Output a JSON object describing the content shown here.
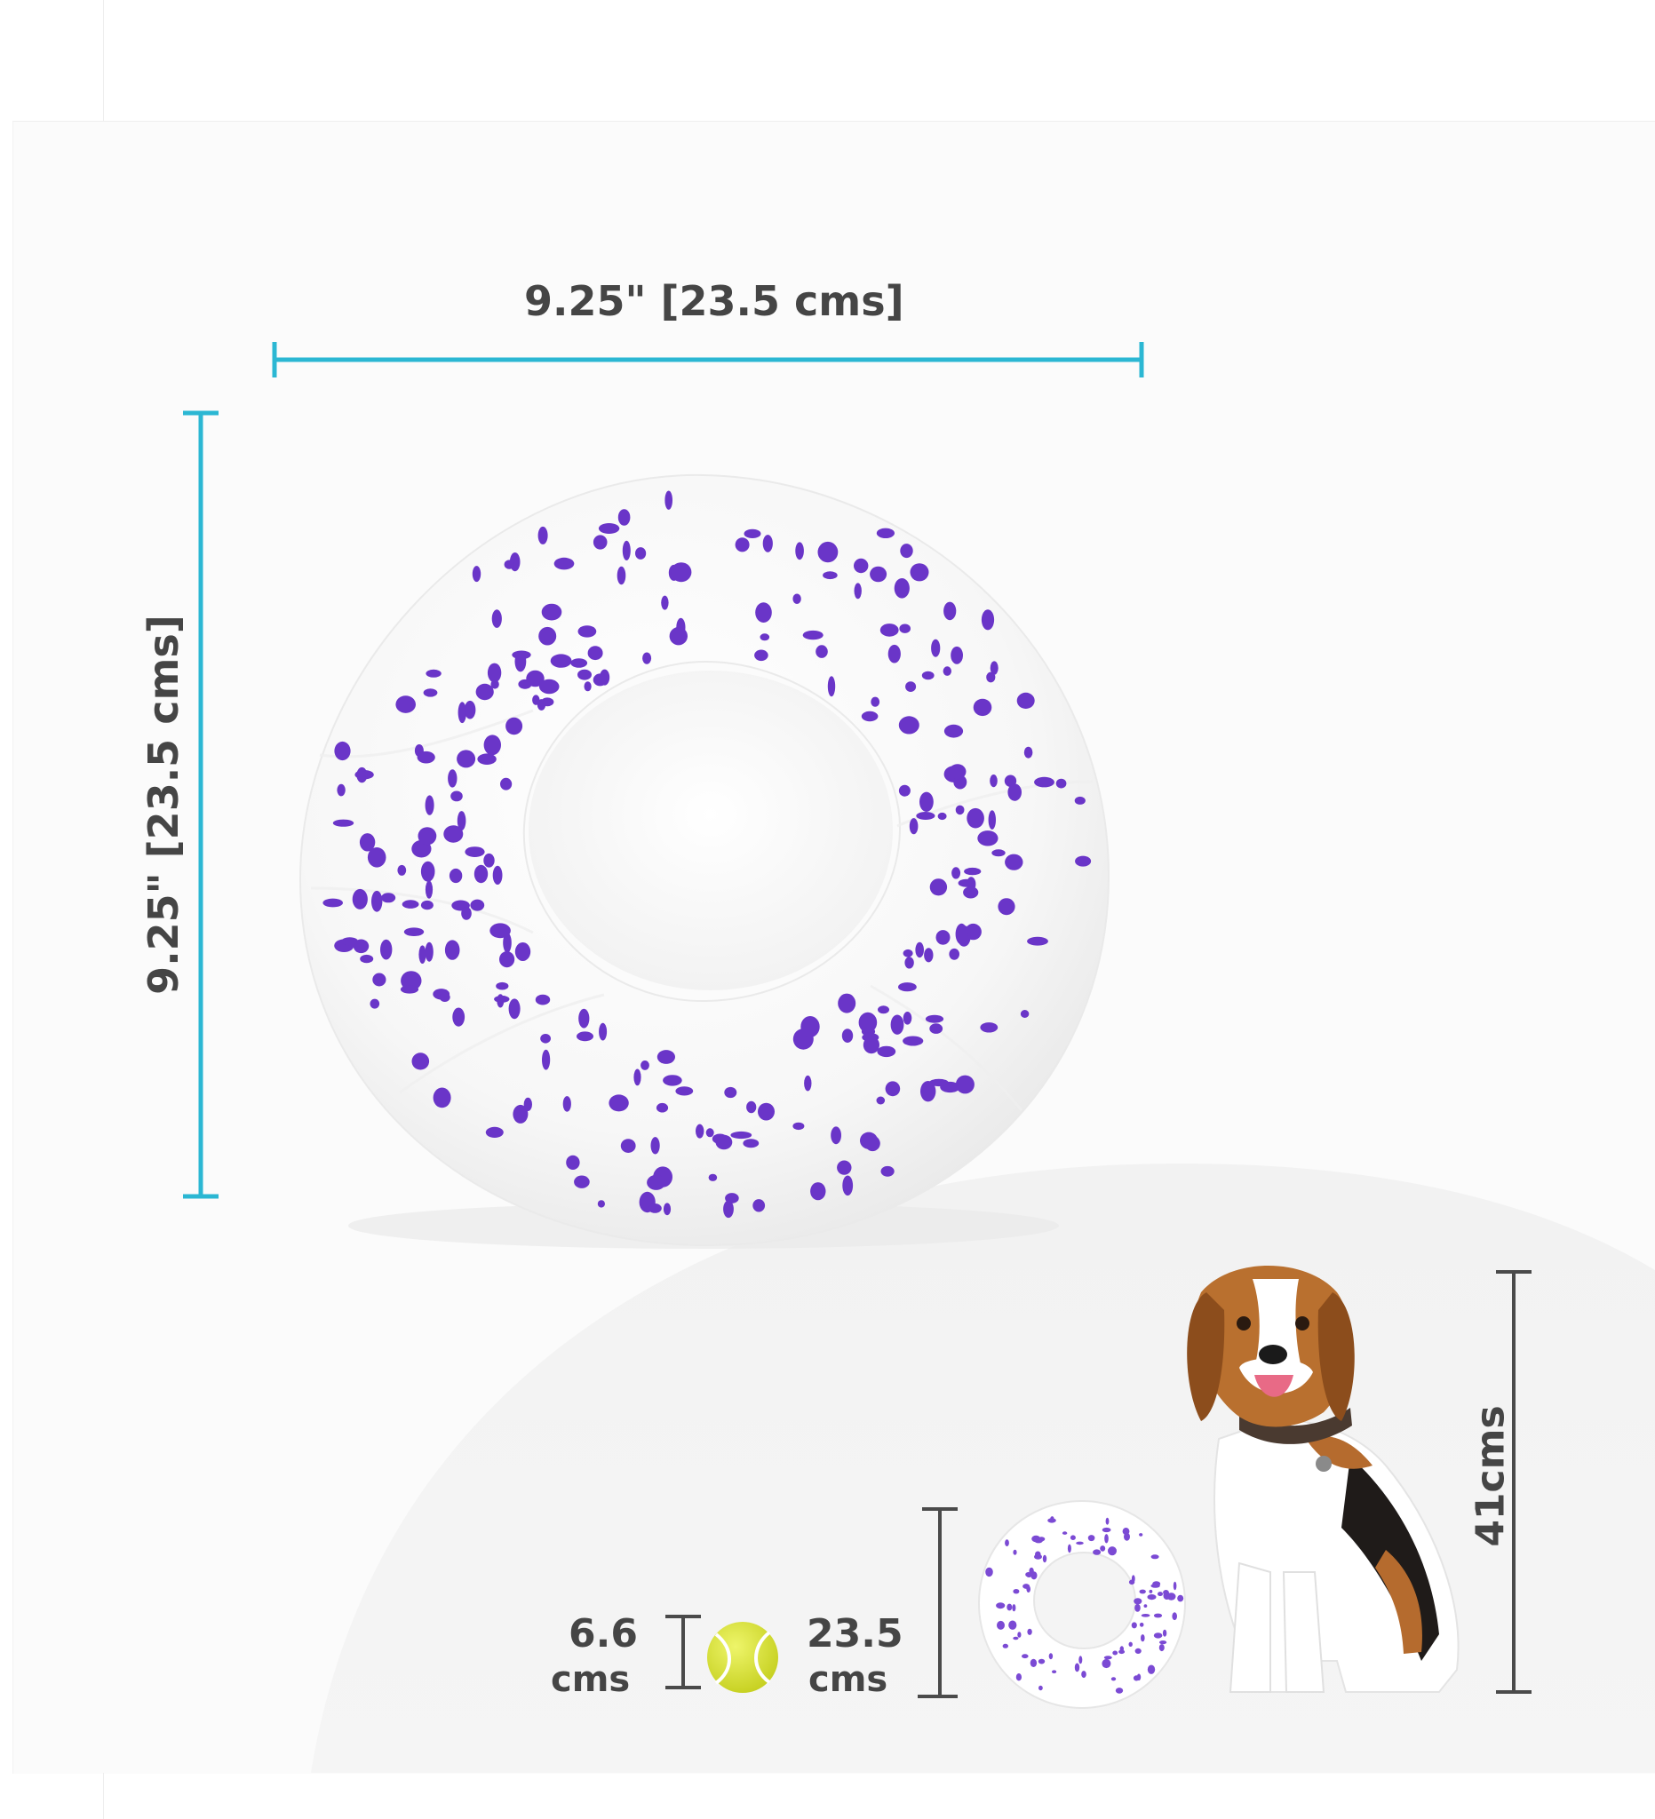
{
  "main_dimensions": {
    "width_label": "9.25\" [23.5 cms]",
    "height_label": "9.25\" [23.5 cms]",
    "measure_color": "#2bb7d3"
  },
  "size_comparison": {
    "tennis_ball": {
      "value": "6.6",
      "unit": "cms"
    },
    "toy": {
      "value": "23.5",
      "unit": "cms"
    },
    "dog_height": "41cms"
  },
  "colors": {
    "toy_speckle": "#6a35c8",
    "tennis_ball": "#d8e334",
    "text": "#454545",
    "bracket": "#4a4a4a"
  }
}
